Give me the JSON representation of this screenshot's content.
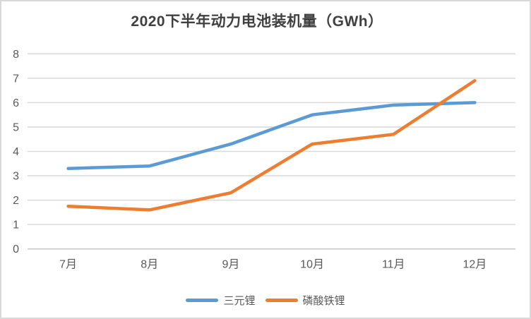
{
  "window": {
    "background": "#ffffff",
    "border_color": "#d8d8d8"
  },
  "chart_data": {
    "type": "line",
    "title": "2020下半年动力电池装机量（GWh）",
    "xlabel": "",
    "ylabel": "",
    "categories": [
      "7月",
      "8月",
      "9月",
      "10月",
      "11月",
      "12月"
    ],
    "series": [
      {
        "name": "三元锂",
        "color": "#5B9BD5",
        "values": [
          3.3,
          3.4,
          4.3,
          5.5,
          5.9,
          6.0
        ]
      },
      {
        "name": "磷酸铁锂",
        "color": "#ED7D31",
        "values": [
          1.75,
          1.6,
          2.3,
          4.3,
          4.7,
          6.9
        ]
      }
    ],
    "ylim": [
      0,
      8
    ],
    "yticks": [
      0,
      1,
      2,
      3,
      4,
      5,
      6,
      7,
      8
    ],
    "grid": true,
    "legend_position": "bottom",
    "colors": {
      "gridline": "#D9D9D9",
      "axis_line": "#C6C6C6",
      "tick_label": "#595959",
      "title": "#404040"
    }
  }
}
